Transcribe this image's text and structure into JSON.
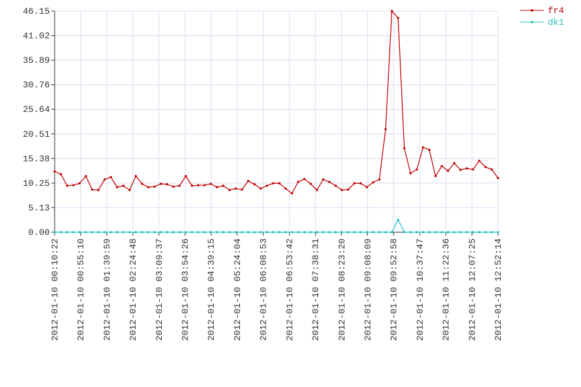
{
  "chart_data": {
    "type": "line",
    "ylim": [
      0,
      46.15
    ],
    "yticks": [
      {
        "value": 0,
        "label": "0.00"
      },
      5.13,
      10.25,
      15.38,
      20.51,
      25.64,
      30.76,
      35.89,
      41.02,
      46.15
    ],
    "xticks": [
      "2012-01-10 00:10:22",
      "2012-01-10 00:55:10",
      "2012-01-10 01:39:59",
      "2012-01-10 02:24:48",
      "2012-01-10 03:09:37",
      "2012-01-10 03:54:26",
      "2012-01-10 04:39:15",
      "2012-01-10 05:24:04",
      "2012-01-10 06:08:53",
      "2012-01-10 06:53:42",
      "2012-01-10 07:38:31",
      "2012-01-10 08:23:20",
      "2012-01-10 09:08:09",
      "2012-01-10 09:52:58",
      "2012-01-10 10:37:47",
      "2012-01-10 11:22:36",
      "2012-01-10 12:07:25",
      "2012-01-10 12:52:14"
    ],
    "grid": true,
    "series": [
      {
        "name": "fr4",
        "color": "#c00000",
        "values": [
          12.7,
          12.1,
          9.7,
          9.8,
          10.2,
          11.7,
          8.9,
          8.8,
          11.0,
          11.5,
          9.4,
          9.7,
          8.8,
          11.7,
          10.1,
          9.4,
          9.5,
          10.1,
          10.0,
          9.5,
          9.7,
          11.7,
          9.7,
          9.8,
          9.8,
          10.1,
          9.4,
          9.7,
          8.8,
          9.1,
          8.9,
          10.7,
          10.0,
          9.1,
          9.7,
          10.2,
          10.2,
          9.1,
          8.1,
          10.5,
          11.1,
          10.1,
          8.8,
          11.0,
          10.5,
          9.7,
          8.8,
          8.9,
          10.2,
          10.2,
          9.4,
          10.4,
          11.0,
          21.5,
          46.15,
          44.7,
          17.5,
          12.3,
          13.1,
          17.7,
          17.2,
          11.7,
          13.8,
          12.8,
          14.4,
          13.0,
          13.3,
          13.1,
          14.9,
          13.6,
          13.1,
          11.3
        ]
      },
      {
        "name": "dk1",
        "color": "#20c0c0",
        "values": [
          0,
          0,
          0,
          0,
          0,
          0,
          0,
          0,
          0,
          0,
          0,
          0,
          0,
          0,
          0,
          0,
          0,
          0,
          0,
          0,
          0,
          0,
          0,
          0,
          0,
          0,
          0,
          0,
          0,
          0,
          0,
          0,
          0,
          0,
          0,
          0,
          0,
          0,
          0,
          0,
          0,
          0,
          0,
          0,
          0,
          0,
          0,
          0,
          0,
          0,
          0,
          0,
          0,
          0,
          0,
          2.6,
          0,
          0,
          0,
          0,
          0,
          0,
          0,
          0,
          0,
          0,
          0,
          0,
          0,
          0,
          0,
          0
        ]
      }
    ]
  }
}
